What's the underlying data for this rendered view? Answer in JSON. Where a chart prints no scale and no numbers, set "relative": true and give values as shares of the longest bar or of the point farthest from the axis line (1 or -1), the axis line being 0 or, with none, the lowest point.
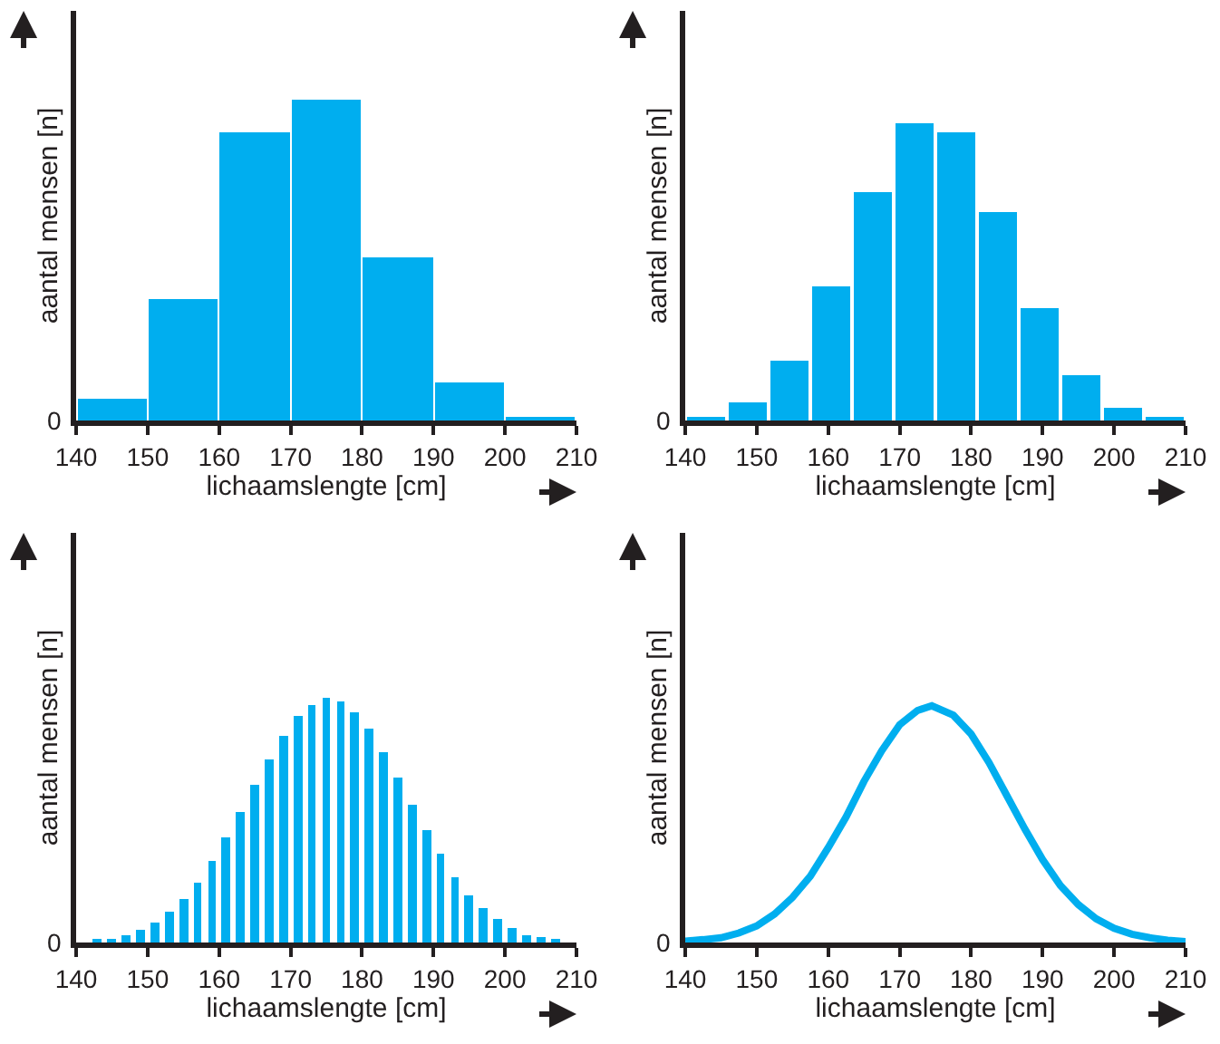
{
  "chart_data": [
    {
      "type": "bar",
      "relative": true,
      "xlabel": "lichaamslengte [cm]",
      "ylabel": "aantal mensen [n]",
      "annotations": [
        "0"
      ],
      "color": "#00aeef",
      "xlim": [
        140,
        210
      ],
      "xticks": [
        140,
        150,
        160,
        170,
        180,
        190,
        200,
        210
      ],
      "x": [
        145,
        155,
        165,
        175,
        185,
        195,
        205
      ],
      "values": [
        0.07,
        0.38,
        0.9,
        1,
        0.51,
        0.12,
        0.01
      ]
    },
    {
      "type": "bar",
      "relative": true,
      "xlabel": "lichaamslengte [cm]",
      "ylabel": "aantal mensen [n]",
      "annotations": [
        "0"
      ],
      "color": "#00aeef",
      "xlim": [
        140,
        210
      ],
      "xticks": [
        140,
        150,
        160,
        170,
        180,
        190,
        200,
        210
      ],
      "x": [
        142.9,
        148.75,
        154.6,
        160.4,
        166.25,
        172.1,
        177.9,
        183.75,
        189.6,
        195.4,
        201.25,
        207.1
      ],
      "values": [
        0.008,
        0.06,
        0.2,
        0.45,
        0.77,
        1,
        0.97,
        0.7,
        0.38,
        0.15,
        0.04,
        0.014
      ]
    },
    {
      "type": "bar",
      "relative": true,
      "xlabel": "lichaamslengte [cm]",
      "ylabel": "aantal mensen [n]",
      "annotations": [
        "0"
      ],
      "color": "#00aeef",
      "xlim": [
        140,
        210
      ],
      "xticks": [
        140,
        150,
        160,
        170,
        180,
        190,
        200,
        210
      ],
      "x": [
        143,
        145,
        147,
        149,
        151,
        153,
        155,
        157,
        159,
        161,
        163,
        165,
        167,
        169,
        171,
        173,
        175,
        177,
        179,
        181,
        183,
        185,
        187,
        189,
        191,
        193,
        195,
        197,
        199,
        201,
        203,
        205,
        207
      ],
      "values": [
        0.008,
        0.018,
        0.03,
        0.053,
        0.085,
        0.126,
        0.178,
        0.249,
        0.332,
        0.43,
        0.535,
        0.646,
        0.751,
        0.844,
        0.93,
        0.975,
        1,
        0.985,
        0.942,
        0.874,
        0.784,
        0.678,
        0.568,
        0.46,
        0.362,
        0.271,
        0.196,
        0.141,
        0.095,
        0.058,
        0.033,
        0.02,
        0.008
      ]
    },
    {
      "type": "line",
      "relative": true,
      "xlabel": "lichaamslengte [cm]",
      "ylabel": "aantal mensen [n]",
      "annotations": [
        "0"
      ],
      "color": "#00aeef",
      "xlim": [
        140,
        210
      ],
      "xticks": [
        140,
        150,
        160,
        170,
        180,
        190,
        200,
        210
      ],
      "marker": "none",
      "line_style": "solid",
      "x": [
        140,
        142.5,
        145,
        147.5,
        150,
        152.5,
        155,
        157.5,
        160,
        162.5,
        165,
        167.5,
        170,
        172.5,
        174.5,
        177.5,
        180,
        182.5,
        185,
        187.5,
        190,
        192.5,
        195,
        197.5,
        200,
        202.5,
        205,
        207.5,
        210
      ],
      "values": [
        0.006,
        0.012,
        0.02,
        0.04,
        0.07,
        0.12,
        0.19,
        0.28,
        0.4,
        0.53,
        0.68,
        0.81,
        0.92,
        0.98,
        1,
        0.96,
        0.88,
        0.76,
        0.62,
        0.48,
        0.35,
        0.24,
        0.16,
        0.1,
        0.06,
        0.035,
        0.02,
        0.01,
        0.004
      ]
    }
  ]
}
